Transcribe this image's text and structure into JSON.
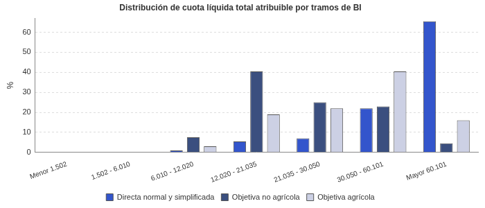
{
  "chart_data": {
    "type": "bar",
    "title": "Distribución de cuota líquida total atribuible por tramos de BI",
    "y_label": "%",
    "categories": [
      "Menor 1.502",
      "1.502 - 6.010",
      "6.010 - 12.020",
      "12.020 - 21.035",
      "21.035 - 30.050",
      "30.050 - 60.101",
      "Mayor 60.101"
    ],
    "series": [
      {
        "name": "Directa normal y simplificada",
        "color": "#3355cc",
        "values": [
          0,
          0,
          1,
          5.5,
          7,
          22,
          65.5
        ]
      },
      {
        "name": "Objetiva no agrícola",
        "color": "#3b4f7f",
        "values": [
          0,
          0,
          7.5,
          40.5,
          25,
          23,
          4.5
        ]
      },
      {
        "name": "Objetiva agrícola",
        "color": "#ccd0e4",
        "values": [
          0,
          0,
          3,
          19,
          22,
          40.5,
          16
        ]
      }
    ],
    "ylim": [
      0,
      67
    ],
    "yticks": [
      0,
      10,
      20,
      30,
      40,
      50,
      60
    ],
    "grid": true,
    "legend": "bottom"
  }
}
